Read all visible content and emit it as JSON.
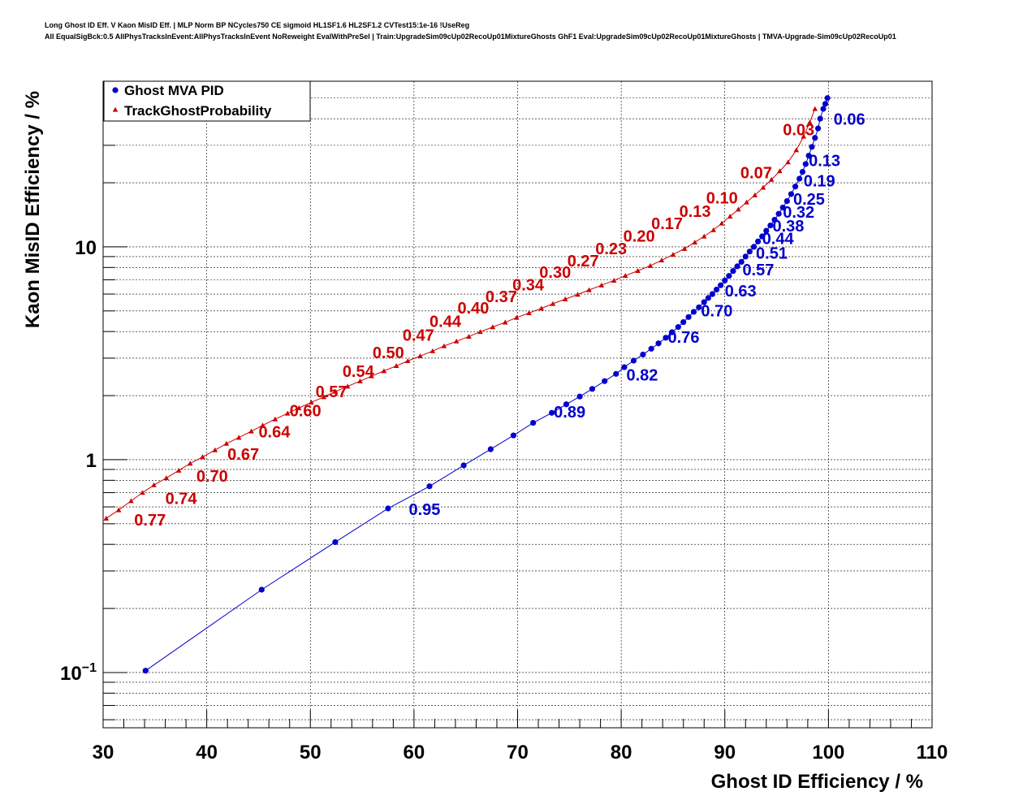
{
  "title": {
    "line1": "Long Ghost ID Eff. V Kaon MisID Eff. | MLP Norm BP NCycles750 CE sigmoid HL1SF1.6 HL2SF1.2 CVTest15:1e-16 !UseReg",
    "line2": "All EqualSigBck:0.5 AllPhysTracksInEvent:AllPhysTracksInEvent NoReweight EvalWithPreSel | Train:UpgradeSim09cUp02RecoUp01MixtureGhosts GhF1 Eval:UpgradeSim09cUp02RecoUp01MixtureGhosts | TMVA-Upgrade-Sim09cUp02RecoUp01"
  },
  "chart_data": {
    "type": "scatter",
    "xlabel": "Ghost ID Efficiency / %",
    "ylabel": "Kaon MisID Efficiency / %",
    "xlim": [
      30,
      110
    ],
    "ylim": [
      0.055,
      60
    ],
    "yscale": "log",
    "grid": true,
    "legend_position": "top-left",
    "x_ticks": [
      "30",
      "40",
      "50",
      "60",
      "70",
      "80",
      "90",
      "100",
      "110"
    ],
    "y_ticks": [
      {
        "value": 0.1,
        "base": "10",
        "exp": "−1"
      },
      {
        "value": 1,
        "base": "1",
        "exp": ""
      },
      {
        "value": 10,
        "base": "10",
        "exp": ""
      }
    ],
    "series": [
      {
        "name": "Ghost MVA PID",
        "color": "#0000cc",
        "marker": "circle",
        "x": [
          34.1,
          45.3,
          52.4,
          57.5,
          61.5,
          64.8,
          67.4,
          69.6,
          71.5,
          73.3,
          74.7,
          76.0,
          77.2,
          78.4,
          79.5,
          80.3,
          81.2,
          82.1,
          82.9,
          83.6,
          84.3,
          84.9,
          85.5,
          86.0,
          86.5,
          87.0,
          87.5,
          88.0,
          88.4,
          88.8,
          89.2,
          89.6,
          90.0,
          90.4,
          90.8,
          91.2,
          91.6,
          92.0,
          92.4,
          92.8,
          93.2,
          93.6,
          94.0,
          94.4,
          94.8,
          95.2,
          95.6,
          96.0,
          96.4,
          96.8,
          97.2,
          97.5,
          97.8,
          98.1,
          98.4,
          98.7,
          99.0,
          99.2,
          99.5,
          99.7,
          99.9
        ],
        "y": [
          0.102,
          0.245,
          0.41,
          0.59,
          0.75,
          0.94,
          1.12,
          1.3,
          1.49,
          1.66,
          1.82,
          1.98,
          2.15,
          2.34,
          2.53,
          2.72,
          2.92,
          3.12,
          3.32,
          3.52,
          3.74,
          3.97,
          4.2,
          4.43,
          4.68,
          4.95,
          5.2,
          5.5,
          5.75,
          6.0,
          6.3,
          6.6,
          6.95,
          7.3,
          7.7,
          8.1,
          8.5,
          9.0,
          9.5,
          10.0,
          10.6,
          11.2,
          11.9,
          12.6,
          13.4,
          14.3,
          15.3,
          16.4,
          17.7,
          19.2,
          20.9,
          22.5,
          24.5,
          26.8,
          29.5,
          32.5,
          36.0,
          40.0,
          44.5,
          47.0,
          50.0
        ],
        "cut_labels": [
          {
            "x": 59.5,
            "y": 0.55,
            "text": "0.95"
          },
          {
            "x": 73.5,
            "y": 1.58,
            "text": "0.89"
          },
          {
            "x": 80.5,
            "y": 2.35,
            "text": "0.82"
          },
          {
            "x": 84.5,
            "y": 3.55,
            "text": "0.76"
          },
          {
            "x": 87.7,
            "y": 4.72,
            "text": "0.70"
          },
          {
            "x": 90.0,
            "y": 5.85,
            "text": "0.63"
          },
          {
            "x": 91.7,
            "y": 7.35,
            "text": "0.57"
          },
          {
            "x": 93.0,
            "y": 8.8,
            "text": "0.51"
          },
          {
            "x": 93.6,
            "y": 10.3,
            "text": "0.44"
          },
          {
            "x": 94.6,
            "y": 11.8,
            "text": "0.38"
          },
          {
            "x": 95.6,
            "y": 13.7,
            "text": "0.32"
          },
          {
            "x": 96.6,
            "y": 15.8,
            "text": "0.25"
          },
          {
            "x": 97.6,
            "y": 19.2,
            "text": "0.19"
          },
          {
            "x": 98.1,
            "y": 24.0,
            "text": "0.13"
          },
          {
            "x": 100.5,
            "y": 37.5,
            "text": "0.06"
          }
        ]
      },
      {
        "name": "TrackGhostProbability",
        "color": "#cc0000",
        "marker": "triangle",
        "x": [
          30.3,
          31.5,
          32.7,
          33.8,
          34.9,
          36.1,
          37.3,
          38.4,
          39.6,
          40.8,
          41.9,
          43.1,
          44.3,
          45.4,
          46.6,
          47.8,
          48.9,
          50.1,
          51.3,
          52.4,
          53.6,
          54.8,
          55.9,
          57.1,
          58.3,
          59.4,
          60.6,
          61.8,
          62.9,
          64.1,
          65.3,
          66.4,
          67.6,
          68.8,
          69.9,
          71.1,
          72.3,
          73.4,
          74.6,
          75.8,
          76.9,
          78.1,
          79.3,
          80.4,
          81.6,
          82.8,
          83.9,
          85.0,
          86.1,
          87.1,
          88.0,
          88.9,
          89.7,
          90.5,
          91.3,
          92.1,
          92.9,
          93.7,
          94.5,
          95.3,
          96.1,
          96.9,
          97.6,
          98.2,
          98.7
        ],
        "y": [
          0.53,
          0.58,
          0.64,
          0.7,
          0.76,
          0.82,
          0.89,
          0.96,
          1.03,
          1.11,
          1.19,
          1.27,
          1.36,
          1.45,
          1.55,
          1.65,
          1.75,
          1.86,
          1.97,
          2.09,
          2.21,
          2.34,
          2.47,
          2.61,
          2.76,
          2.91,
          3.07,
          3.24,
          3.42,
          3.6,
          3.79,
          3.99,
          4.2,
          4.42,
          4.65,
          4.89,
          5.14,
          5.4,
          5.68,
          5.97,
          6.27,
          6.6,
          6.95,
          7.32,
          7.72,
          8.15,
          8.65,
          9.2,
          9.8,
          10.5,
          11.2,
          12.0,
          12.9,
          13.9,
          15.0,
          16.2,
          17.5,
          19.0,
          20.7,
          22.7,
          25.0,
          28.5,
          33.0,
          38.5,
          44.5
        ],
        "cut_labels": [
          {
            "x": 33.0,
            "y": 0.49,
            "text": "0.77"
          },
          {
            "x": 36.0,
            "y": 0.62,
            "text": "0.74"
          },
          {
            "x": 39.0,
            "y": 0.79,
            "text": "0.70"
          },
          {
            "x": 42.0,
            "y": 1.0,
            "text": "0.67"
          },
          {
            "x": 45.0,
            "y": 1.27,
            "text": "0.64"
          },
          {
            "x": 48.0,
            "y": 1.6,
            "text": "0.60"
          },
          {
            "x": 50.5,
            "y": 1.97,
            "text": "0.57"
          },
          {
            "x": 53.1,
            "y": 2.45,
            "text": "0.54"
          },
          {
            "x": 56.0,
            "y": 3.0,
            "text": "0.50"
          },
          {
            "x": 58.9,
            "y": 3.62,
            "text": "0.47"
          },
          {
            "x": 61.5,
            "y": 4.2,
            "text": "0.44"
          },
          {
            "x": 64.2,
            "y": 4.85,
            "text": "0.40"
          },
          {
            "x": 66.9,
            "y": 5.5,
            "text": "0.37"
          },
          {
            "x": 69.5,
            "y": 6.25,
            "text": "0.34"
          },
          {
            "x": 72.1,
            "y": 7.15,
            "text": "0.30"
          },
          {
            "x": 74.8,
            "y": 8.1,
            "text": "0.27"
          },
          {
            "x": 77.5,
            "y": 9.25,
            "text": "0.23"
          },
          {
            "x": 80.2,
            "y": 10.6,
            "text": "0.20"
          },
          {
            "x": 82.9,
            "y": 12.1,
            "text": "0.17"
          },
          {
            "x": 85.6,
            "y": 13.8,
            "text": "0.13"
          },
          {
            "x": 88.2,
            "y": 16.0,
            "text": "0.10"
          },
          {
            "x": 91.5,
            "y": 21.0,
            "text": "0.07"
          },
          {
            "x": 95.6,
            "y": 33.5,
            "text": "0.03"
          }
        ]
      }
    ]
  }
}
